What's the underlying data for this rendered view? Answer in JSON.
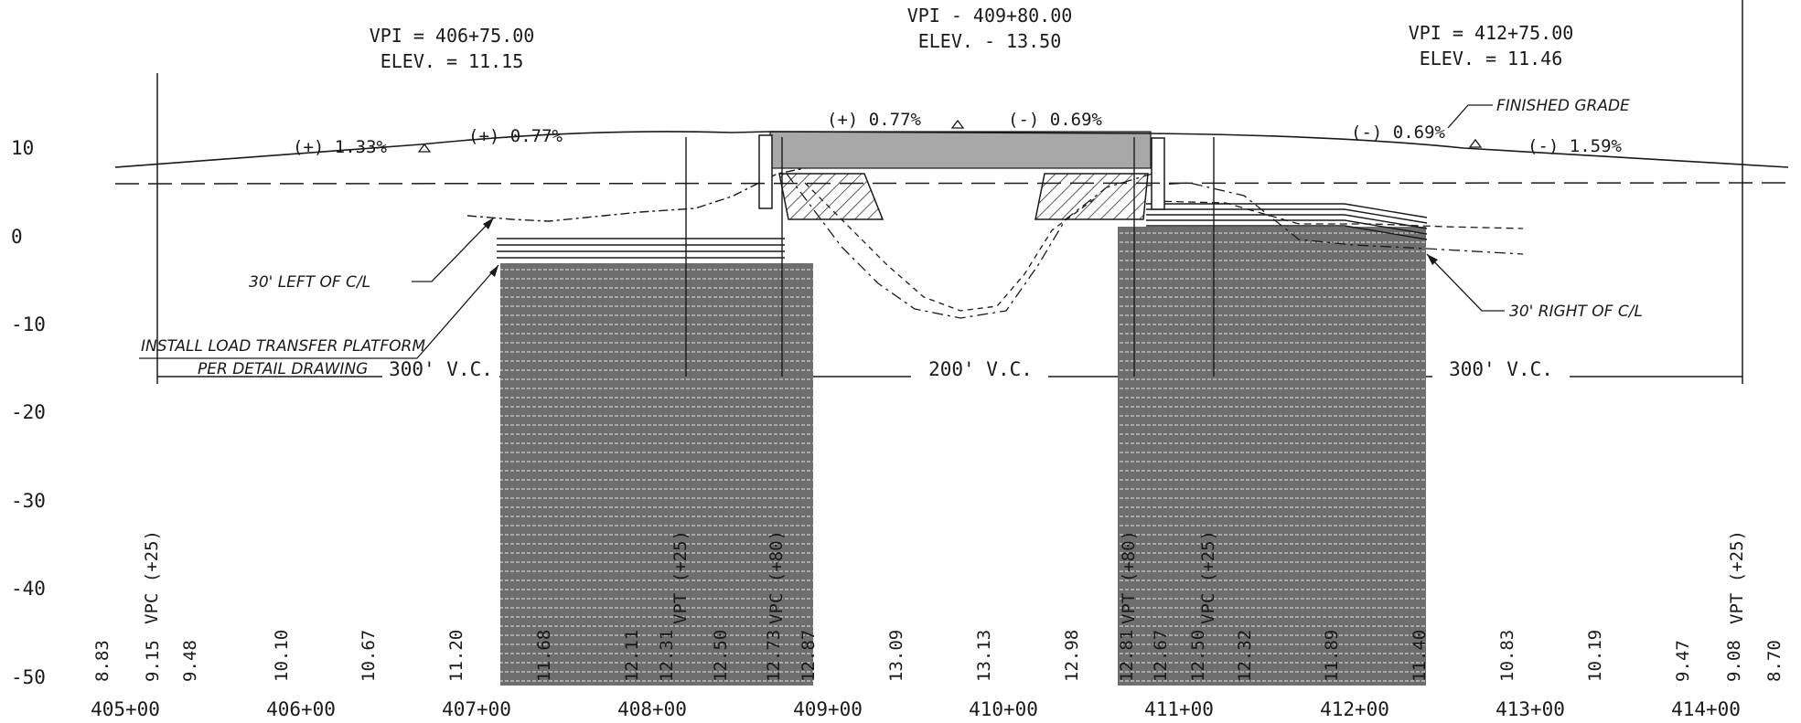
{
  "vpi_labels": [
    {
      "sta": "VPI = 406+75.00",
      "elev": "ELEV. = 11.15"
    },
    {
      "sta": "VPI - 409+80.00",
      "elev": "ELEV. - 13.50"
    },
    {
      "sta": "VPI = 412+75.00",
      "elev": "ELEV. = 11.46"
    }
  ],
  "grades": [
    "(+) 1.33%",
    "(+) 0.77%",
    "(+) 0.77%",
    "(-) 0.69%",
    "(-) 0.69%",
    "(-) 1.59%"
  ],
  "vertical_curves": [
    "300' V.C.",
    "200' V.C.",
    "300' V.C."
  ],
  "annotations": {
    "finished_grade": "FINISHED GRADE",
    "left_offset": "30' LEFT OF C/L",
    "right_offset": "30' RIGHT OF C/L",
    "platform_line1": "INSTALL LOAD TRANSFER PLATFORM",
    "platform_line2": "PER DETAIL DRAWING"
  },
  "elevation_axis": [
    "10",
    "0",
    "-10",
    "-20",
    "-30",
    "-40",
    "-50"
  ],
  "stations": [
    "405+00",
    "406+00",
    "407+00",
    "408+00",
    "409+00",
    "410+00",
    "411+00",
    "412+00",
    "413+00",
    "414+00"
  ],
  "grade_elevations": [
    "8.83",
    "9.15",
    "9.48",
    "10.10",
    "10.67",
    "11.20",
    "11.68",
    "12.11",
    "12.31",
    "12.50",
    "12.73",
    "12.87",
    "13.09",
    "13.13",
    "12.98",
    "12.81",
    "12.67",
    "12.50",
    "12.32",
    "11.89",
    "11.40",
    "10.83",
    "10.19",
    "9.47",
    "9.08",
    "8.70"
  ],
  "curve_points": [
    "VPC (+25)",
    "VPT (+25)",
    "VPC (+80)",
    "VPT (+80)",
    "VPC (+25)",
    "VPT (+25)"
  ]
}
